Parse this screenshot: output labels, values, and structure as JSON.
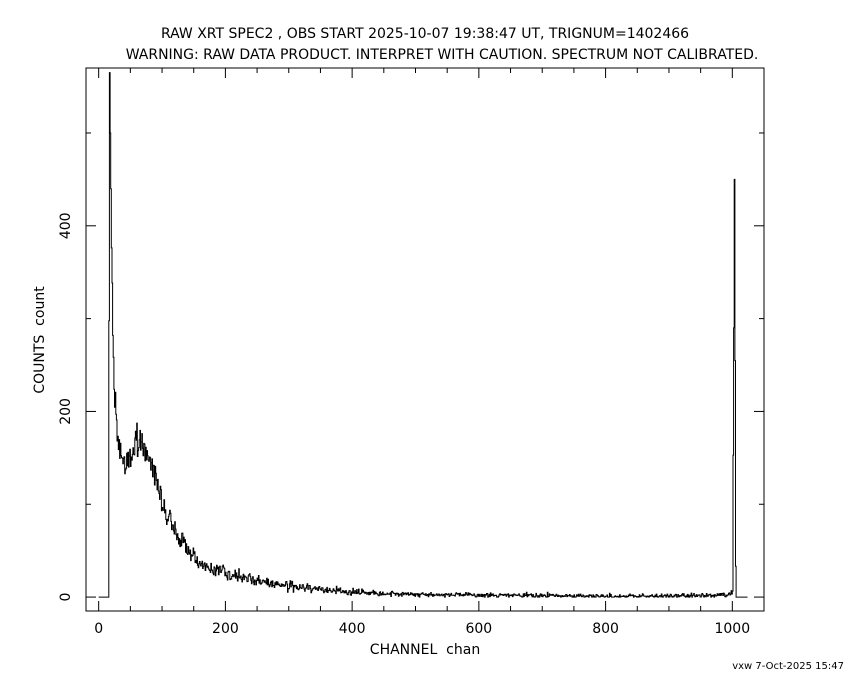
{
  "chart_data": {
    "type": "line",
    "title": "RAW XRT SPEC2 , OBS START 2025-10-07 19:38:47 UT, TRIGNUM=1402466",
    "subtitle": "WARNING: RAW DATA PRODUCT. INTERPRET WITH CAUTION. SPECTRUM NOT CALIBRATED.",
    "xlabel": "CHANNEL  chan",
    "ylabel": "COUNTS  count",
    "xlim": [
      -20,
      1050
    ],
    "ylim": [
      -15,
      570
    ],
    "xticks": [
      0,
      200,
      400,
      600,
      800,
      1000
    ],
    "yticks": [
      0,
      200,
      400
    ],
    "grid": false,
    "line_color": "#000000",
    "series": [
      {
        "x": [
          0,
          10,
          15,
          16,
          17,
          18,
          20,
          22,
          25,
          28,
          30,
          35,
          40,
          45,
          50,
          55,
          60,
          65,
          70,
          75,
          80,
          85,
          90,
          95,
          100,
          110,
          120,
          130,
          140,
          150,
          160,
          170,
          180,
          200,
          220,
          250,
          280,
          300,
          350,
          400,
          450,
          500,
          600,
          700,
          800,
          900,
          995,
          1000,
          1002,
          1003,
          1004,
          1005,
          1006,
          1008,
          1010,
          1023
        ],
        "y": [
          0,
          0,
          0,
          300,
          565,
          500,
          380,
          280,
          215,
          190,
          165,
          155,
          140,
          145,
          150,
          160,
          168,
          170,
          162,
          155,
          150,
          140,
          128,
          115,
          100,
          85,
          72,
          60,
          50,
          43,
          37,
          33,
          30,
          27,
          22,
          18,
          14,
          12,
          8,
          6,
          4,
          3,
          2,
          1.5,
          1,
          1,
          2,
          5,
          290,
          450,
          250,
          30,
          0,
          0,
          0,
          0
        ]
      }
    ]
  },
  "footer": "vxw  7-Oct-2025 15:47"
}
